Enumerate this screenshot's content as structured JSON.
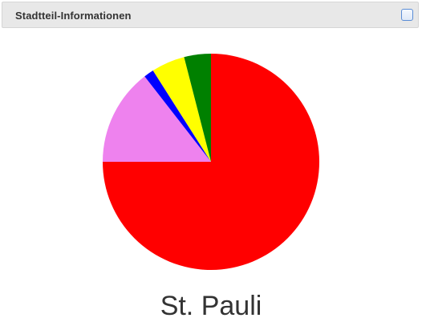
{
  "header": {
    "title": "Stadtteil-Informationen"
  },
  "chart_data": {
    "type": "pie",
    "title": "St. Pauli",
    "start_angle_deg": 0,
    "direction": "clockwise",
    "slices": [
      {
        "value": 75.0,
        "color": "#ff0000"
      },
      {
        "value": 14.5,
        "color": "#ee82ee"
      },
      {
        "value": 1.5,
        "color": "#0000ff"
      },
      {
        "value": 5.0,
        "color": "#ffff00"
      },
      {
        "value": 4.0,
        "color": "#008000"
      }
    ]
  }
}
